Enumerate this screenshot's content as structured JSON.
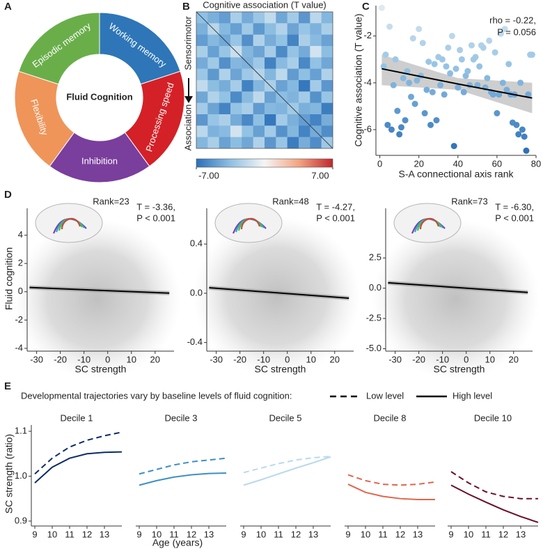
{
  "chart_data": [
    {
      "type": "donut",
      "panel_label": "A",
      "center_label": "Fluid Cognition",
      "categories": [
        "Working memory",
        "Processing speed",
        "Inhibition",
        "Flexibility",
        "Episodic memory"
      ],
      "colors": [
        "#2e76b8",
        "#d42127",
        "#7a3e9d",
        "#ef955a",
        "#6aae4a"
      ]
    },
    {
      "type": "heatmap",
      "panel_label": "B",
      "title": "Cognitive association (T value)",
      "row_labels": [
        "Sensorimotor",
        "Association"
      ],
      "matrix": [
        [
          -3.5
        ],
        [
          -4.2,
          -2.1
        ],
        [
          -5.0,
          -3.8,
          -4.5
        ],
        [
          -2.6,
          -4.9,
          -3.2,
          -1.5
        ],
        [
          -4.4,
          -2.9,
          -5.6,
          -3.9,
          -4.1
        ],
        [
          -3.1,
          -5.2,
          -2.4,
          -4.7,
          -3.0,
          -2.2
        ],
        [
          -1.8,
          -3.6,
          -4.3,
          -2.7,
          -6.2,
          -3.9,
          -2.5
        ],
        [
          -4.6,
          -2.3,
          -3.4,
          -5.8,
          -3.7,
          -1.9,
          -4.8,
          -3.6
        ],
        [
          -2.8,
          -4.7,
          -6.1,
          -3.3,
          -2.6,
          -5.1,
          -3.8,
          -4.0,
          -2.9
        ],
        [
          -5.3,
          -3.2,
          -2.5,
          -4.4,
          -5.9,
          -3.5,
          -6.6,
          -2.8,
          -4.2,
          -5.0
        ],
        [
          -2.0,
          -4.1,
          -3.7,
          -1.2,
          -3.4,
          -4.9,
          -2.8,
          -5.5,
          -3.9,
          -6.1,
          -4.4
        ],
        [
          -3.9,
          -2.6,
          -4.8,
          -3.6,
          -4.6,
          -2.4,
          -5.3,
          -3.2,
          -6.4,
          -4.3,
          -5.7,
          -3.0
        ]
      ],
      "colormap": [
        "#2b6fb8",
        "#8fc0e3",
        "#f5f5f5",
        "#f4a582",
        "#c0272d"
      ],
      "colorbar": {
        "lim": [
          -7,
          7
        ],
        "ticks": [
          {
            "value": -7,
            "label": "-7.00"
          },
          {
            "value": 7,
            "label": "7.00"
          }
        ]
      }
    },
    {
      "type": "scatter",
      "panel_label": "C",
      "xlabel": "S-A connectional axis rank",
      "ylabel": "Cognitive association (T value)",
      "annotation": [
        "rho = -0.22,",
        "P = 0.056"
      ],
      "x": [
        1,
        2,
        3,
        4,
        5,
        6,
        7,
        8,
        9,
        10,
        11,
        12,
        13,
        14,
        15,
        16,
        17,
        18,
        19,
        20,
        21,
        22,
        23,
        24,
        25,
        26,
        27,
        28,
        29,
        30,
        31,
        32,
        33,
        34,
        35,
        36,
        37,
        38,
        39,
        40,
        41,
        42,
        43,
        44,
        45,
        46,
        47,
        48,
        49,
        50,
        51,
        52,
        53,
        54,
        55,
        56,
        57,
        58,
        59,
        60,
        61,
        62,
        63,
        64,
        65,
        66,
        67,
        68,
        69,
        70,
        71,
        72,
        73,
        74,
        75,
        76,
        77,
        78
      ],
      "y": [
        -0.8,
        -3.3,
        -2.8,
        -5.8,
        -1.6,
        -6.0,
        -4.1,
        -3.0,
        -5.2,
        -6.2,
        -5.9,
        -3.8,
        -5.6,
        -3.5,
        -4.0,
        -4.6,
        -2.1,
        -4.9,
        -3.9,
        -1.7,
        -3.7,
        -2.3,
        -5.3,
        -4.3,
        -3.1,
        -5.8,
        -4.4,
        -3.2,
        -5.6,
        -2.9,
        -4.1,
        -3.0,
        -4.5,
        -3.3,
        -2.5,
        -3.6,
        -2.0,
        -6.7,
        -3.4,
        -4.2,
        -2.6,
        -3.0,
        -4.4,
        -3.7,
        -3.5,
        -4.1,
        -2.4,
        -3.0,
        -2.9,
        -4.1,
        -3.3,
        -2.4,
        -2.5,
        -4.2,
        -3.8,
        -2.2,
        -4.4,
        -4.5,
        -2.7,
        -5.3,
        -4.5,
        -1.9,
        -4.0,
        -1.7,
        -4.3,
        -3.2,
        -4.5,
        -5.7,
        -4.5,
        -5.8,
        -6.2,
        -4.0,
        -6.0,
        -6.3,
        -6.9,
        -4.5,
        -2.8,
        -2.8
      ],
      "xlim": [
        -2,
        80
      ],
      "ylim": [
        -7.1,
        -0.7
      ],
      "xticks": [
        0,
        20,
        40,
        60,
        80
      ],
      "yticks": [
        -6,
        -4,
        -2
      ],
      "fit": {
        "x": [
          1,
          40,
          78
        ],
        "y": [
          -3.4,
          -4.05,
          -4.65
        ],
        "lower": [
          -4.1,
          -4.3,
          -5.3
        ],
        "upper": [
          -2.8,
          -3.8,
          -4.0
        ]
      }
    },
    {
      "type": "scatter_fit",
      "panel_label": "D",
      "title": "Rank=23",
      "annotation": [
        "T = -3.36,",
        "P < 0.001"
      ],
      "xlabel": "SC strength",
      "ylabel": "Fluid cognition",
      "xlim": [
        -34,
        28
      ],
      "ylim": [
        -4.2,
        5.9
      ],
      "xticks": [
        -30,
        -20,
        -10,
        0,
        10,
        20
      ],
      "yticks": [
        -4,
        -2,
        0,
        2,
        4
      ],
      "fit": {
        "x": [
          -33,
          26
        ],
        "y": [
          0.3,
          -0.1
        ]
      }
    },
    {
      "type": "scatter_fit",
      "title": "Rank=48",
      "annotation": [
        "T = -4.27,",
        "P < 0.001"
      ],
      "xlabel": "SC strength",
      "xlim": [
        -34,
        28
      ],
      "ylim": [
        -0.47,
        0.69
      ],
      "xticks": [
        -30,
        -20,
        -10,
        0,
        10,
        20
      ],
      "yticks": [
        -0.4,
        {
          "value": 0,
          "label": "0.0"
        },
        0.4
      ],
      "fit": {
        "x": [
          -33,
          26
        ],
        "y": [
          0.045,
          -0.04
        ]
      }
    },
    {
      "type": "scatter_fit",
      "title": "Rank=73",
      "annotation": [
        "T = -6.30,",
        "P < 0.001"
      ],
      "xlabel": "SC strength",
      "xlim": [
        -34,
        28
      ],
      "ylim": [
        -5.2,
        6.6
      ],
      "xticks": [
        -30,
        -20,
        -10,
        0,
        10,
        20
      ],
      "yticks": [
        {
          "value": -5,
          "label": "-5.0"
        },
        -2.5,
        {
          "value": 0,
          "label": "0.0"
        },
        2.5
      ],
      "fit": {
        "x": [
          -33,
          26
        ],
        "y": [
          0.45,
          -0.35
        ]
      }
    },
    {
      "type": "line",
      "panel_label": "E",
      "legend_title": "Developmental trajectories vary by baseline levels of fluid cognition:",
      "legend": [
        {
          "name": "Low level",
          "dash": "dashed"
        },
        {
          "name": "High level",
          "dash": "solid"
        }
      ],
      "xlabel": "Age (years)",
      "ylabel": "SC strength (ratio)",
      "x": [
        9,
        10,
        11,
        12,
        13,
        14
      ],
      "xlim": [
        8.8,
        14
      ],
      "xticks": [
        9,
        10,
        11,
        12,
        13
      ],
      "ylim": [
        0.889,
        1.114
      ],
      "yticks": [
        0.9,
        {
          "value": 1,
          "label": "1.0"
        },
        1.1
      ],
      "facets": [
        {
          "title": "Decile 1",
          "color": "#0c2c66",
          "series": [
            {
              "values": [
                1.005,
                1.04,
                1.065,
                1.08,
                1.09,
                1.098
              ]
            },
            {
              "values": [
                0.985,
                1.02,
                1.04,
                1.05,
                1.053,
                1.054
              ]
            }
          ]
        },
        {
          "title": "Decile 3",
          "color": "#3d8fc6",
          "series": [
            {
              "values": [
                1.005,
                1.015,
                1.025,
                1.032,
                1.036,
                1.04
              ]
            },
            {
              "values": [
                0.98,
                0.99,
                0.998,
                1.003,
                1.006,
                1.007
              ]
            }
          ]
        },
        {
          "title": "Decile 5",
          "color": "#b9d9ee",
          "series": [
            {
              "values": [
                1.008,
                1.018,
                1.028,
                1.036,
                1.041,
                1.044
              ]
            },
            {
              "values": [
                0.98,
                0.992,
                1.005,
                1.018,
                1.03,
                1.043
              ]
            }
          ]
        },
        {
          "title": "Decile 8",
          "color": "#e0664d",
          "series": [
            {
              "values": [
                1.003,
                0.99,
                0.982,
                0.98,
                0.982,
                0.987
              ]
            },
            {
              "values": [
                0.982,
                0.964,
                0.955,
                0.95,
                0.948,
                0.948
              ]
            }
          ]
        },
        {
          "title": "Decile 10",
          "color": "#6b0d2e",
          "series": [
            {
              "values": [
                1.01,
                0.985,
                0.965,
                0.955,
                0.95,
                0.95
              ]
            },
            {
              "values": [
                0.98,
                0.96,
                0.942,
                0.925,
                0.91,
                0.897
              ]
            }
          ]
        }
      ]
    }
  ]
}
